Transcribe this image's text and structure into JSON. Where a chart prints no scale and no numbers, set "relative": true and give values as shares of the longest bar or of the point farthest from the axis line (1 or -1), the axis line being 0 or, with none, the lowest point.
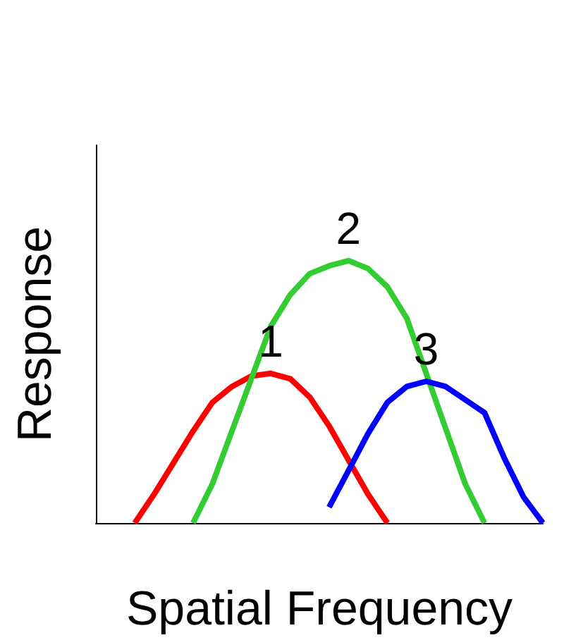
{
  "chart_data": {
    "type": "line",
    "relative": true,
    "xlabel": "Spatial Frequency",
    "ylabel": "Response",
    "categories": [
      null,
      null,
      null,
      null,
      null,
      null,
      null,
      null,
      null,
      null,
      null,
      null,
      null,
      null,
      null,
      null,
      null,
      null,
      null,
      null,
      null,
      null,
      null,
      null
    ],
    "series": [
      {
        "name": "1",
        "color": "#ff0000",
        "values": [
          null,
          null,
          0,
          0.11,
          0.23,
          0.35,
          0.46,
          0.52,
          0.56,
          0.57,
          0.55,
          0.48,
          0.37,
          0.24,
          0.11,
          0,
          null,
          null,
          null,
          null,
          null,
          null,
          null,
          null
        ]
      },
      {
        "name": "2",
        "color": "#33cc33",
        "values": [
          null,
          null,
          null,
          null,
          null,
          0,
          0.15,
          0.35,
          0.55,
          0.75,
          0.87,
          0.95,
          0.98,
          1,
          0.97,
          0.9,
          0.78,
          0.57,
          0.36,
          0.15,
          0,
          null,
          null,
          null
        ]
      },
      {
        "name": "3",
        "color": "#0000ff",
        "values": [
          null,
          null,
          null,
          null,
          null,
          null,
          null,
          null,
          null,
          null,
          null,
          null,
          0.06,
          0.2,
          0.34,
          0.46,
          0.52,
          0.54,
          0.52,
          0.47,
          0.42,
          0.25,
          0.1,
          0
        ]
      }
    ],
    "grid": false,
    "legend": false,
    "marker": "none",
    "line_style": "solid"
  }
}
